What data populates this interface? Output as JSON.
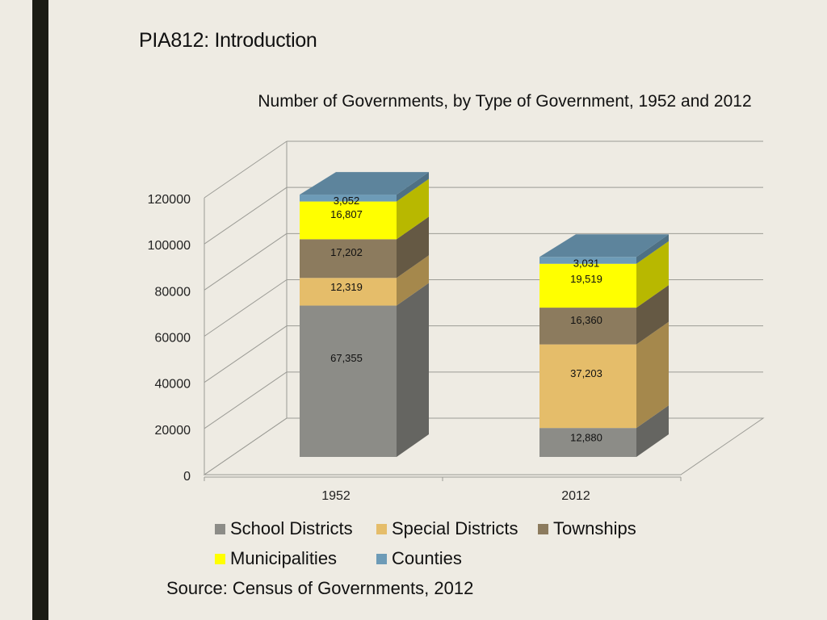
{
  "slide_title": "PIA812: Introduction",
  "source": "Source: Census of Governments, 2012",
  "chart_data": {
    "type": "bar",
    "stacked": true,
    "three_d": true,
    "title": "Number of Governments, by Type of Government, 1952 and 2012",
    "categories": [
      "1952",
      "2012"
    ],
    "ylim": [
      0,
      120000
    ],
    "yticks": [
      "0",
      "20000",
      "40000",
      "60000",
      "80000",
      "100000",
      "120000"
    ],
    "grid": true,
    "legend_position": "bottom",
    "series": [
      {
        "name": "School Districts",
        "values": [
          67355,
          12880
        ],
        "labels": [
          "67,355",
          "12,880"
        ],
        "color": "#8c8c87"
      },
      {
        "name": "Special Districts",
        "values": [
          12319,
          37203
        ],
        "labels": [
          "12,319",
          "37,203"
        ],
        "color": "#e5bd6a"
      },
      {
        "name": "Townships",
        "values": [
          17202,
          16360
        ],
        "labels": [
          "17,202",
          "16,360"
        ],
        "color": "#8c7b5e"
      },
      {
        "name": "Municipalities",
        "values": [
          16807,
          19519
        ],
        "labels": [
          "16,807",
          "19,519"
        ],
        "color": "#ffff00"
      },
      {
        "name": "Counties",
        "values": [
          3052,
          3031
        ],
        "labels": [
          "3,052",
          "3,031"
        ],
        "color": "#6d9bb7"
      }
    ]
  }
}
